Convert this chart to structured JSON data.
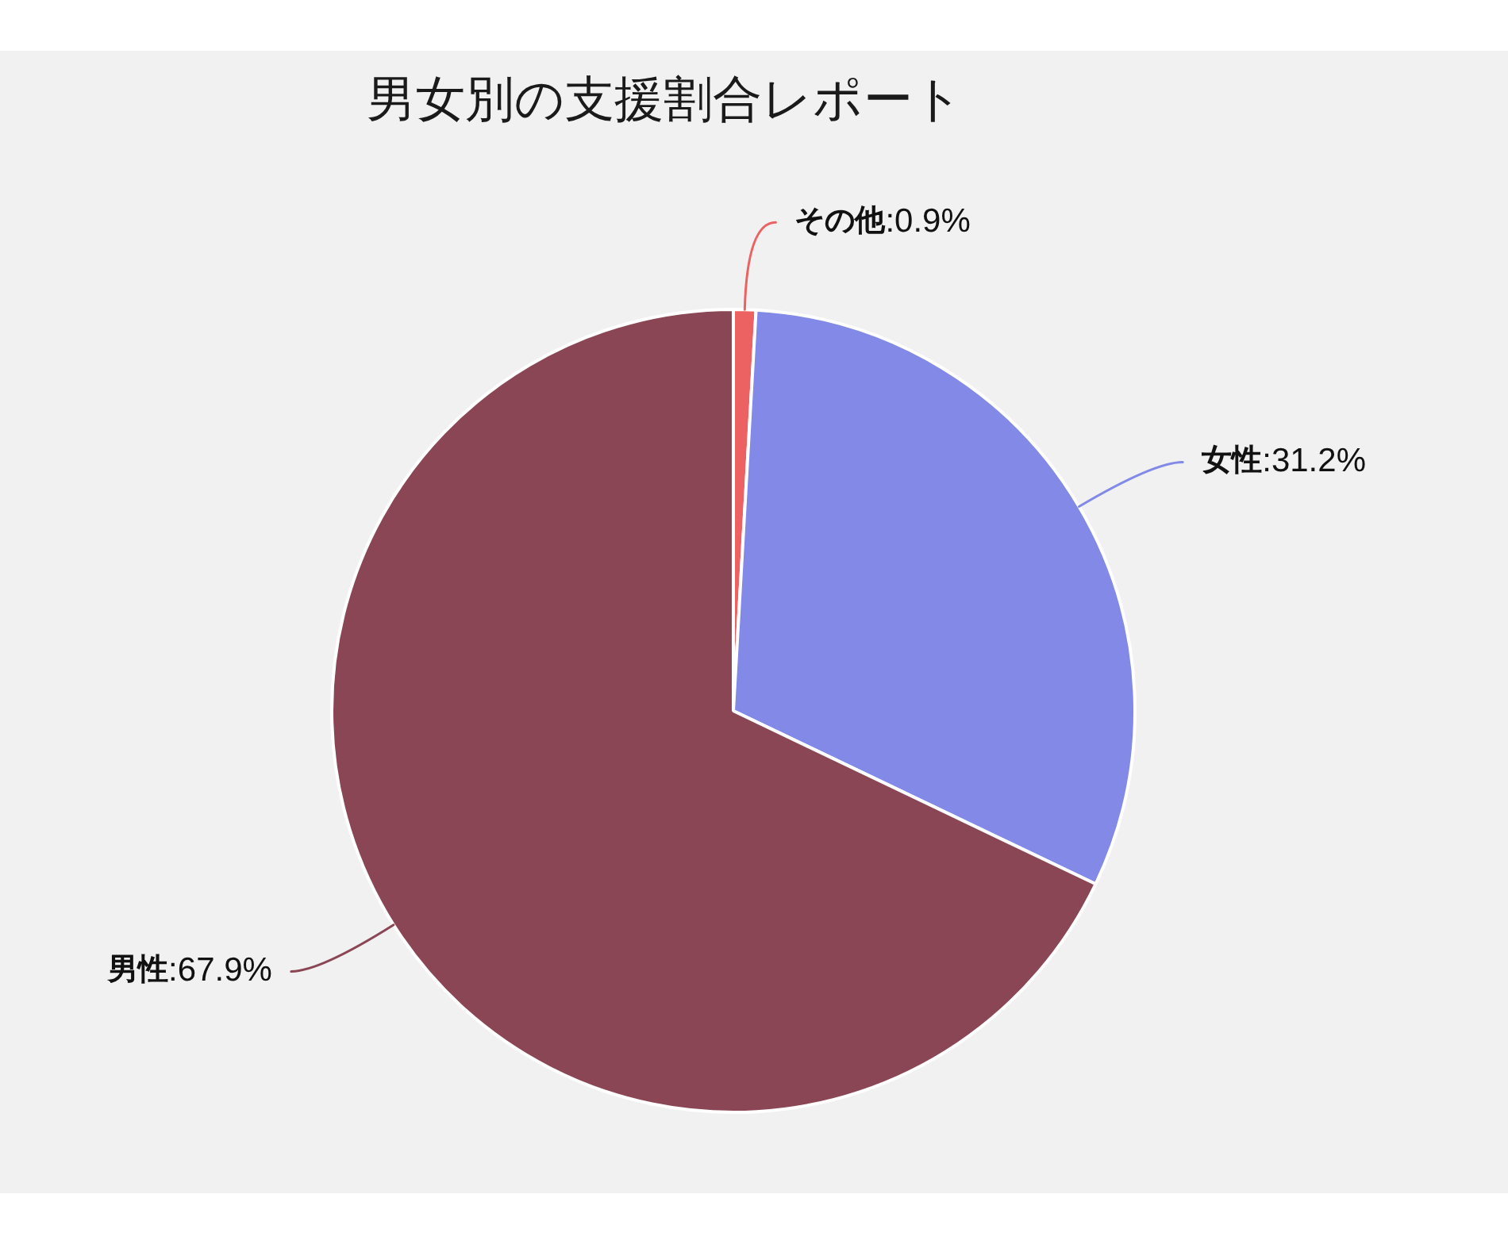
{
  "chart_data": {
    "type": "pie",
    "title": "男女別の支援割合レポート",
    "categories": [
      "その他",
      "女性",
      "男性"
    ],
    "values": [
      0.9,
      31.2,
      67.9
    ],
    "colors": [
      "#ec6262",
      "#8289e6",
      "#8a4654"
    ],
    "value_labels": [
      ":0.9%",
      ":31.2%",
      ":67.9%"
    ]
  }
}
